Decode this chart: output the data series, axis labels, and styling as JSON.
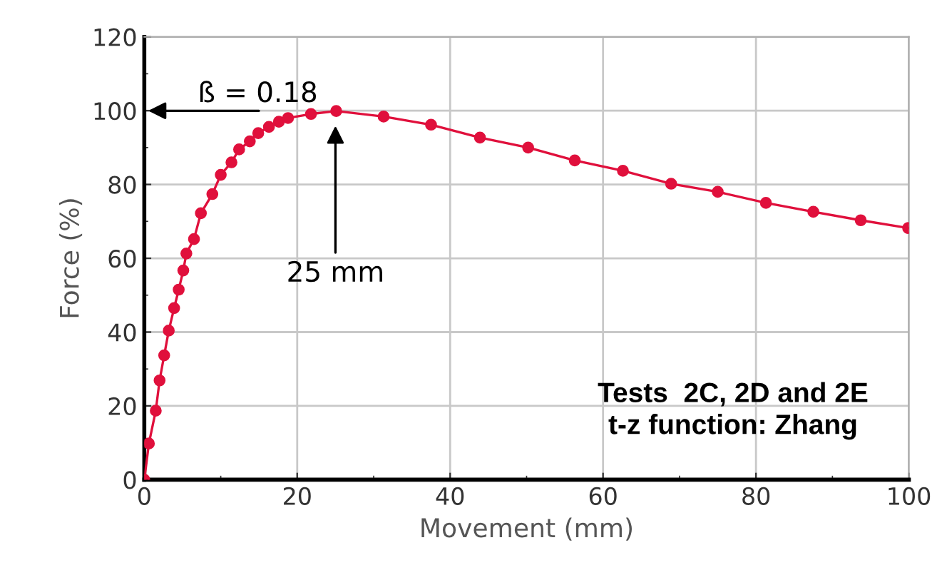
{
  "chart_data": {
    "type": "line",
    "xlabel": "Movement (mm)",
    "ylabel": "Force (%)",
    "xlim": [
      0,
      100
    ],
    "ylim": [
      0,
      120
    ],
    "xticks": [
      0,
      20,
      40,
      60,
      80,
      100
    ],
    "yticks": [
      0,
      20,
      40,
      60,
      80,
      100,
      120
    ],
    "grid": true,
    "marker": "circle",
    "line_style": "solid",
    "series": [
      {
        "color": "#e0103c",
        "x": [
          0,
          0.6,
          1.5,
          2.0,
          2.6,
          3.2,
          3.9,
          4.5,
          5.1,
          5.5,
          6.5,
          7.4,
          8.9,
          10,
          11.4,
          12.4,
          13.8,
          14.9,
          16.3,
          17.6,
          18.8,
          21.8,
          25.1,
          31.3,
          37.5,
          43.9,
          50.2,
          56.3,
          62.6,
          68.9,
          75,
          81.3,
          87.5,
          93.7,
          99.9
        ],
        "values": [
          0,
          9.8,
          18.7,
          26.9,
          33.7,
          40.4,
          46.5,
          51.5,
          56.7,
          61.3,
          65.2,
          72.2,
          77.4,
          82.6,
          86,
          89.5,
          91.7,
          93.9,
          95.6,
          97,
          98,
          99.1,
          99.9,
          98.4,
          96.2,
          92.7,
          90,
          86.5,
          83.7,
          80.2,
          78,
          75,
          72.6,
          70.3,
          68.2
        ]
      }
    ],
    "annotations": [
      "ß = 0.18",
      {
        "text": "25 mm",
        "x": 25,
        "y": 97
      },
      "Tests  2C, 2D and 2E\nt-z function: Zhang"
    ]
  }
}
